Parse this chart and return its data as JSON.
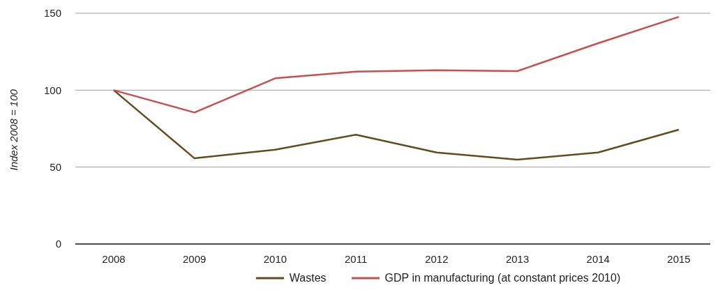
{
  "chart_data": {
    "type": "line",
    "ylabel": "Index 2008 = 100",
    "categories": [
      "2008",
      "2009",
      "2010",
      "2011",
      "2012",
      "2013",
      "2014",
      "2015"
    ],
    "series": [
      {
        "name": "Wastes",
        "color": "#634a1f",
        "values": [
          100,
          55.7,
          61.3,
          71,
          59.5,
          54.8,
          59.5,
          74.3
        ]
      },
      {
        "name": "GDP in manufacturing (at constant prices 2010)",
        "color": "#c84f4f",
        "values": [
          100,
          85.5,
          107.7,
          112,
          112.9,
          112.4,
          130.5,
          147.7
        ]
      }
    ],
    "ylim": [
      0,
      150
    ],
    "yticks": [
      0,
      50,
      100,
      150
    ],
    "grid": "y",
    "legend": "bottom",
    "marker": "none",
    "line_style": "solid"
  }
}
